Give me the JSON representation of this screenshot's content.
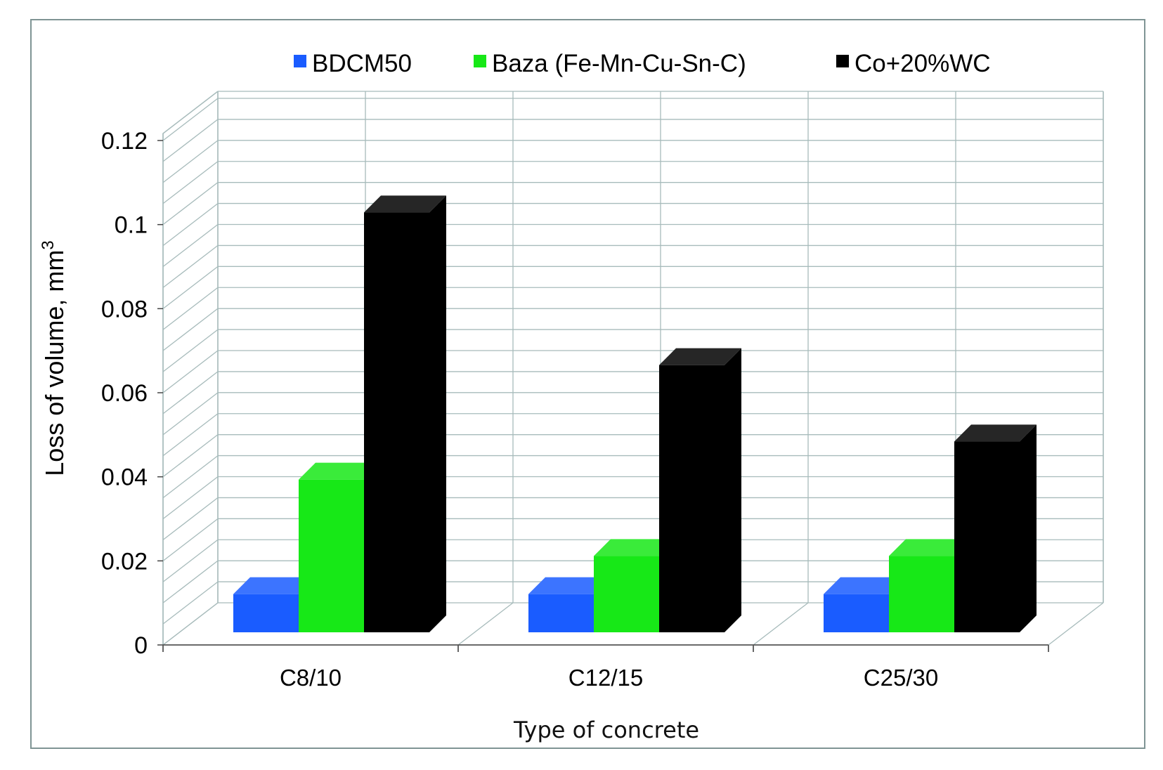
{
  "chart_data": {
    "type": "bar",
    "categories": [
      "C8/10",
      "C12/15",
      "C25/30"
    ],
    "series": [
      {
        "name": "BDCM50",
        "color": "#1a5cff",
        "values": [
          0.01,
          0.01,
          0.01
        ]
      },
      {
        "name": "Baza (Fe-Mn-Cu-Sn-C)",
        "color": "#17e817",
        "values": [
          0.04,
          0.02,
          0.02
        ]
      },
      {
        "name": "Co+20%WC",
        "color": "#000000",
        "values": [
          0.11,
          0.07,
          0.05
        ]
      }
    ],
    "ylabel_main": "Loss of volume, mm",
    "ylabel_sup": "3",
    "xlabel": "Type of concrete",
    "ylim": [
      0,
      0.12
    ],
    "yticks": [
      "0",
      "0.02",
      "0.04",
      "0.06",
      "0.08",
      "0.1",
      "0.12"
    ],
    "grid": true,
    "legend_position": "top",
    "style": "3d-clustered-column"
  }
}
